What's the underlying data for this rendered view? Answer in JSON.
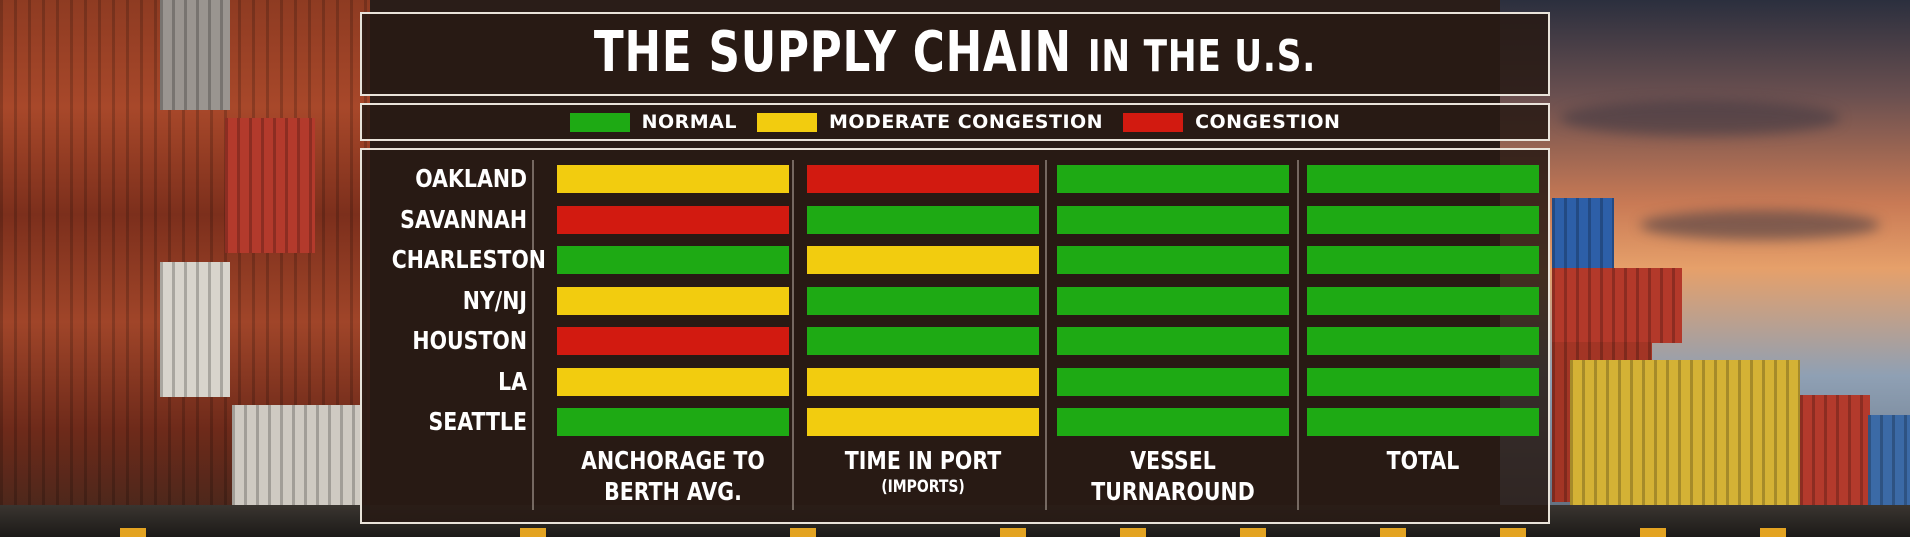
{
  "title": {
    "main": "THE SUPPLY CHAIN",
    "tail": "IN THE U.S."
  },
  "colors": {
    "normal": "#1eaa14",
    "moderate": "#f2cc0f",
    "congestion": "#d21a10"
  },
  "legend": [
    {
      "status": "normal",
      "label": "NORMAL"
    },
    {
      "status": "moderate",
      "label": "MODERATE CONGESTION"
    },
    {
      "status": "congestion",
      "label": "CONGESTION"
    }
  ],
  "chart_data": {
    "type": "heatmap",
    "title": "THE SUPPLY CHAIN IN THE U.S.",
    "rows": [
      "OAKLAND",
      "SAVANNAH",
      "CHARLESTON",
      "NY/NJ",
      "HOUSTON",
      "LA",
      "SEATTLE"
    ],
    "columns": [
      {
        "line1": "ANCHORAGE TO",
        "line2": "BERTH AVG.",
        "sub": ""
      },
      {
        "line1": "TIME IN PORT",
        "line2": "",
        "sub": "(IMPORTS)"
      },
      {
        "line1": "VESSEL",
        "line2": "TURNAROUND",
        "sub": ""
      },
      {
        "line1": "TOTAL",
        "line2": "",
        "sub": ""
      }
    ],
    "values": [
      [
        "moderate",
        "congestion",
        "normal",
        "normal"
      ],
      [
        "congestion",
        "normal",
        "normal",
        "normal"
      ],
      [
        "normal",
        "moderate",
        "normal",
        "normal"
      ],
      [
        "moderate",
        "normal",
        "normal",
        "normal"
      ],
      [
        "congestion",
        "normal",
        "normal",
        "normal"
      ],
      [
        "moderate",
        "moderate",
        "normal",
        "normal"
      ],
      [
        "normal",
        "moderate",
        "normal",
        "normal"
      ]
    ]
  }
}
